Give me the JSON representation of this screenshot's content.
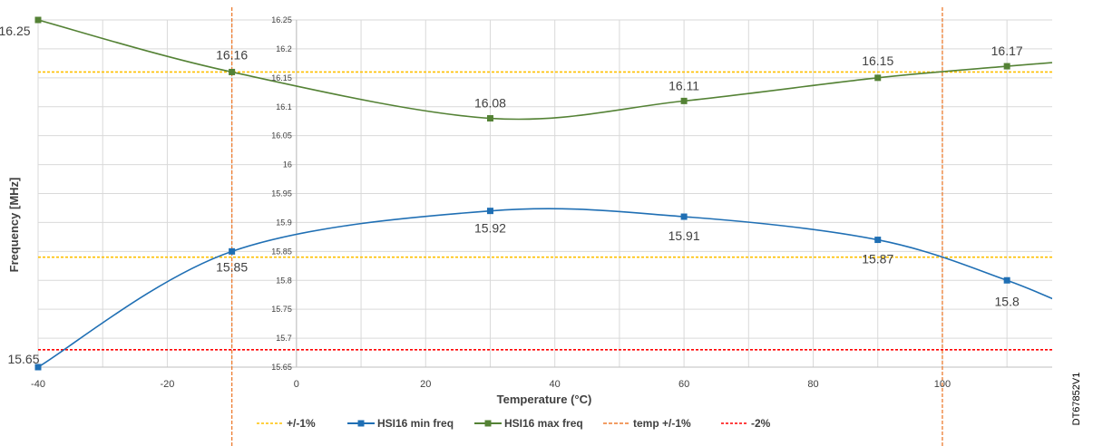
{
  "chart_data": {
    "type": "line",
    "xlabel": "Temperature (°C)",
    "ylabel": "Frequency [MHz]",
    "xlim": [
      -40,
      117
    ],
    "ylim": [
      15.65,
      16.25
    ],
    "x_ticks": [
      "-40",
      "-20",
      "0",
      "20",
      "40",
      "60",
      "80",
      "100"
    ],
    "y_ticks": [
      "15.65",
      "15.7",
      "15.75",
      "15.8",
      "15.85",
      "15.9",
      "15.95",
      "16",
      "16.05",
      "16.1",
      "16.15",
      "16.2",
      "16.25"
    ],
    "grid": true,
    "legend_position": "bottom",
    "series": [
      {
        "name": "HSI16 min freq",
        "color": "#1f6fb4",
        "marker": "square",
        "x": [
          -40,
          -10,
          30,
          60,
          90,
          110
        ],
        "y": [
          15.65,
          15.85,
          15.92,
          15.91,
          15.87,
          15.8
        ],
        "labels": [
          "15.65",
          "15.85",
          "15.92",
          "15.91",
          "15.87",
          "15.8"
        ]
      },
      {
        "name": "HSI16 max freq",
        "color": "#548235",
        "marker": "square",
        "x": [
          -40,
          -10,
          30,
          60,
          90,
          110
        ],
        "y": [
          16.25,
          16.16,
          16.08,
          16.11,
          16.15,
          16.17
        ],
        "labels": [
          "16.25",
          "16.16",
          "16.08",
          "16.11",
          "16.15",
          "16.17"
        ]
      }
    ],
    "reference_lines": [
      {
        "name": "+/-1%",
        "orientation": "horizontal",
        "color": "#ffc000",
        "style": "dashed",
        "values": [
          16.16,
          15.84
        ]
      },
      {
        "name": "temp +/-1%",
        "orientation": "vertical",
        "color": "#ed7d31",
        "style": "dashed",
        "values": [
          -10,
          100
        ]
      },
      {
        "name": "-2%",
        "orientation": "horizontal",
        "color": "#ff0000",
        "style": "dashed",
        "values": [
          15.68
        ]
      }
    ],
    "legend": [
      "+/-1%",
      "HSI16 min freq",
      "HSI16 max freq",
      "temp +/-1%",
      "-2%"
    ]
  },
  "document_id": "DT67852V1"
}
